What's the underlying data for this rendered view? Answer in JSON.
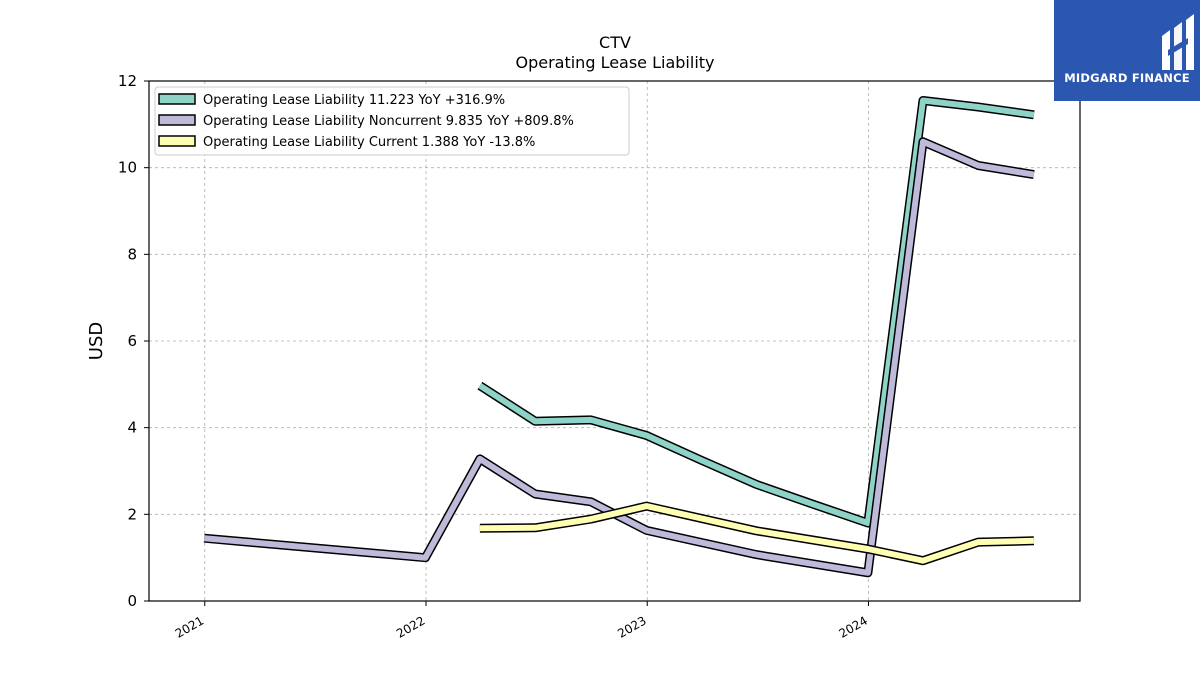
{
  "chart_data": {
    "type": "line",
    "title": "CTV",
    "subtitle": "Operating Lease Liability",
    "ylabel": "USD",
    "xlabel": "",
    "xlim": [
      "2020-10-01",
      "2024-12-15"
    ],
    "ylim": [
      0,
      12
    ],
    "x_ticks": [
      "2021",
      "2022",
      "2023",
      "2024"
    ],
    "y_ticks": [
      0,
      2,
      4,
      6,
      8,
      10,
      12
    ],
    "grid": true,
    "legend_position": "top-left",
    "series": [
      {
        "name": "Operating Lease Liability",
        "legend_label": "Operating Lease Liability  11.223 YoY +316.9%",
        "color": "#8dd3c7",
        "points": [
          {
            "x": "2022-03-31",
            "y": 4.97
          },
          {
            "x": "2022-06-30",
            "y": 4.15
          },
          {
            "x": "2022-09-30",
            "y": 4.18
          },
          {
            "x": "2022-12-31",
            "y": 3.82
          },
          {
            "x": "2023-03-31",
            "y": 3.25
          },
          {
            "x": "2023-06-30",
            "y": 2.69
          },
          {
            "x": "2023-09-30",
            "y": 2.24
          },
          {
            "x": "2023-12-31",
            "y": 1.8
          },
          {
            "x": "2024-03-31",
            "y": 11.55
          },
          {
            "x": "2024-06-30",
            "y": 11.4
          },
          {
            "x": "2024-09-30",
            "y": 11.22
          }
        ]
      },
      {
        "name": "Operating Lease Liability Noncurrent",
        "legend_label": "Operating Lease Liability Noncurrent  9.835 YoY +809.8%",
        "color": "#bebada",
        "points": [
          {
            "x": "2020-12-31",
            "y": 1.45
          },
          {
            "x": "2021-12-31",
            "y": 1.0
          },
          {
            "x": "2022-03-31",
            "y": 3.28
          },
          {
            "x": "2022-06-30",
            "y": 2.47
          },
          {
            "x": "2022-09-30",
            "y": 2.29
          },
          {
            "x": "2022-12-31",
            "y": 1.63
          },
          {
            "x": "2023-06-30",
            "y": 1.07
          },
          {
            "x": "2023-12-31",
            "y": 0.65
          },
          {
            "x": "2024-03-31",
            "y": 10.6
          },
          {
            "x": "2024-06-30",
            "y": 10.05
          },
          {
            "x": "2024-09-30",
            "y": 9.84
          }
        ]
      },
      {
        "name": "Operating Lease Liability Current",
        "legend_label": "Operating Lease Liability Current  1.388 YoY -13.8%",
        "color": "#ffffb3",
        "points": [
          {
            "x": "2022-03-31",
            "y": 1.68
          },
          {
            "x": "2022-06-30",
            "y": 1.69
          },
          {
            "x": "2022-09-30",
            "y": 1.89
          },
          {
            "x": "2022-12-31",
            "y": 2.19
          },
          {
            "x": "2023-06-30",
            "y": 1.62
          },
          {
            "x": "2023-12-31",
            "y": 1.2
          },
          {
            "x": "2024-03-31",
            "y": 0.93
          },
          {
            "x": "2024-06-30",
            "y": 1.36
          },
          {
            "x": "2024-09-30",
            "y": 1.39
          }
        ]
      }
    ]
  },
  "logo": {
    "text": "MIDGARD FINANCE",
    "background": "#2b57b0"
  }
}
